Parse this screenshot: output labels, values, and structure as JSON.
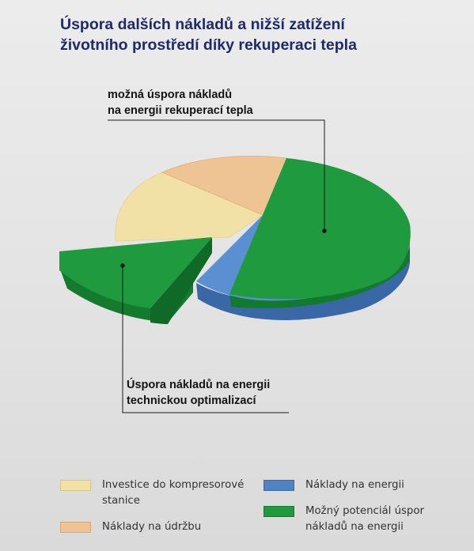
{
  "title": [
    "Úspora dalších nákladů a nižší zatížení",
    "životního prostředí díky rekuperaci tepla"
  ],
  "annotations": {
    "top": [
      "možná úspora nákladů",
      "na energii rekuperací tepla"
    ],
    "bottom": [
      "Úspora nákladů na energii",
      "technickou optimalizací"
    ]
  },
  "colors": {
    "investice": "#f2e1a6",
    "udrzba": "#eec495",
    "energie": "#4f83c5",
    "potencial": "#1f9a3e"
  },
  "legend": [
    {
      "label": "Investice do kompresorové stanice",
      "color": "#f2e1a6"
    },
    {
      "label": "Náklady na údržbu",
      "color": "#eec495"
    },
    {
      "label": "Náklady na energii",
      "color": "#4f83c5"
    },
    {
      "label": "Možný potenciál úspor nákladů na energii",
      "color": "#1f9a3e"
    }
  ],
  "chart_data": {
    "type": "pie",
    "style": "3d-exploded",
    "title": "Úspora dalších nákladů a nižší zatížení životního prostředí díky rekuperaci tepla",
    "slices": [
      {
        "name": "Investice do kompresorové stanice",
        "value": 14,
        "color": "#f2e1a6"
      },
      {
        "name": "Náklady na údržbu",
        "value": 11,
        "color": "#eec495"
      },
      {
        "name": "Náklady na energii",
        "value": 75,
        "color": "#4f83c5",
        "overlay": "Možný potenciál úspor nákladů na energii",
        "overlay_parts": [
          {
            "label": "možná úspora nákladů na energii rekuperací tepla",
            "value": 49
          },
          {
            "label": "Úspora nákladů na energii technickou optimalizací",
            "value": 14,
            "exploded": true
          }
        ]
      }
    ],
    "legend_position": "bottom"
  }
}
